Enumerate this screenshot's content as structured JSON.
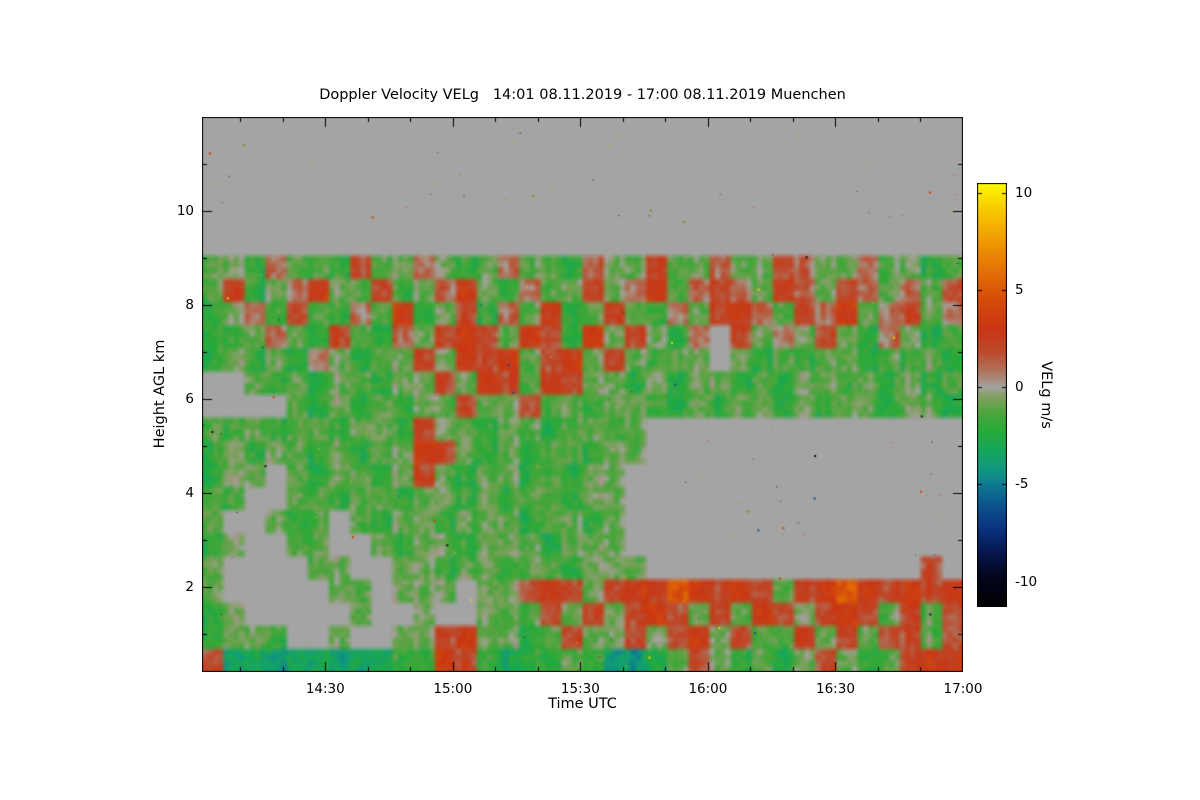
{
  "title": "Doppler Velocity VELg   14:01 08.11.2019 - 17:00 08.11.2019 Muenchen",
  "x_axis": {
    "label": "Time UTC",
    "ticks": [
      {
        "label": "14:30",
        "min": 870
      },
      {
        "label": "15:00",
        "min": 900
      },
      {
        "label": "15:30",
        "min": 930
      },
      {
        "label": "16:00",
        "min": 960
      },
      {
        "label": "16:30",
        "min": 990
      },
      {
        "label": "17:00",
        "min": 1020
      }
    ],
    "start_min": 841,
    "end_min": 1020,
    "minor_step_min": 10
  },
  "y_axis": {
    "label": "Height AGL km",
    "ticks": [
      2,
      4,
      6,
      8,
      10
    ],
    "minor_ticks": [
      1,
      3,
      5,
      7,
      9,
      11
    ],
    "min": 0.2,
    "max": 12.0
  },
  "colorbar": {
    "label": "VELg m/s",
    "ticks": [
      10,
      5,
      0,
      -5,
      -10
    ],
    "min": -11.3,
    "max": 10.5
  },
  "colors": {
    "background_gray": "#a4a4a4",
    "page_bg": "#ffffff",
    "axis": "#000000",
    "speckles": [
      "#101010",
      "#e8d400",
      "#cc4400",
      "#224488",
      "#888800"
    ]
  },
  "chart_data": {
    "type": "heatmap",
    "title": "Doppler Velocity VELg   14:01 08.11.2019 - 17:00 08.11.2019 Muenchen",
    "xlabel": "Time UTC",
    "ylabel": "Height AGL km",
    "value_label": "VELg m/s",
    "x_start": "14:01",
    "x_end": "17:00",
    "t_start_min": 841,
    "t_end_min": 1020,
    "y_top_km": 12.0,
    "y_bottom_km": 0.2,
    "value_range": [
      -11.3,
      10.5
    ],
    "background_value": 0,
    "n_cols": 36,
    "n_rows": 24,
    "colormap_stops": [
      [
        -11.3,
        "#000000"
      ],
      [
        -9.8,
        "#02051c"
      ],
      [
        -8.5,
        "#07174e"
      ],
      [
        -7.2,
        "#0b3380"
      ],
      [
        -6.0,
        "#0d568e"
      ],
      [
        -5.0,
        "#0e7b92"
      ],
      [
        -4.2,
        "#119a7e"
      ],
      [
        -3.2,
        "#16a75b"
      ],
      [
        -2.2,
        "#2aaa38"
      ],
      [
        -1.4,
        "#49a63a"
      ],
      [
        -0.7,
        "#74a155"
      ],
      [
        -0.2,
        "#95a07e"
      ],
      [
        0.0,
        "#a4a4a4"
      ],
      [
        0.3,
        "#a89284"
      ],
      [
        0.9,
        "#b0715a"
      ],
      [
        1.8,
        "#bd4a2c"
      ],
      [
        3.0,
        "#c93614"
      ],
      [
        4.5,
        "#d64b0a"
      ],
      [
        6.0,
        "#e47205"
      ],
      [
        7.5,
        "#ef9a02"
      ],
      [
        9.0,
        "#f7c601"
      ],
      [
        10.5,
        "#fdf802"
      ]
    ],
    "grid_rows_top_to_bottom": [
      [
        0,
        0,
        0,
        0,
        0,
        0,
        0,
        0,
        0,
        0,
        0,
        0,
        0,
        0,
        0,
        0,
        0,
        0,
        0,
        0,
        0,
        0,
        0,
        0,
        0,
        0,
        0,
        0,
        0,
        0,
        0,
        0,
        0,
        0,
        0,
        0
      ],
      [
        0,
        0,
        0,
        0,
        0,
        0,
        0,
        0,
        0,
        0,
        0,
        0,
        0,
        0,
        0,
        0,
        0,
        0,
        0,
        0,
        0,
        0,
        0,
        0,
        0,
        0,
        0,
        0,
        0,
        0,
        0,
        0,
        0,
        0,
        0,
        0
      ],
      [
        0,
        0,
        0,
        0,
        0,
        0,
        0,
        0,
        0,
        0,
        0,
        0,
        0,
        0,
        0,
        0,
        0,
        0,
        0,
        0,
        0,
        0,
        0,
        0,
        0,
        0,
        0,
        0,
        0,
        0,
        0,
        0,
        0,
        0,
        0,
        0
      ],
      [
        0,
        0,
        0,
        0,
        0,
        0,
        0,
        0,
        0,
        0,
        0,
        0,
        0,
        0,
        0,
        0,
        0,
        0,
        0,
        0,
        0,
        0,
        0,
        0,
        0,
        0,
        0,
        0,
        0,
        0,
        0,
        0,
        0,
        0,
        0,
        0
      ],
      [
        0,
        0,
        0,
        0,
        0,
        0,
        0,
        0,
        0,
        0,
        0,
        0,
        0,
        0,
        0,
        0,
        0,
        0,
        0,
        0,
        0,
        0,
        0,
        0,
        0,
        0,
        0,
        0,
        0,
        0,
        0,
        0,
        0,
        0,
        0,
        0
      ],
      [
        0,
        0,
        0,
        0,
        0,
        0,
        0,
        0,
        0,
        0,
        0,
        0,
        0,
        0,
        0,
        0,
        0,
        0,
        0,
        0,
        0,
        0,
        0,
        0,
        0,
        0,
        0,
        0,
        0,
        0,
        0,
        0,
        0,
        0,
        0,
        0
      ],
      [
        -1,
        -1,
        -2,
        1,
        -1,
        -1,
        -2,
        2,
        -1,
        -1,
        1,
        -1,
        -2,
        -1,
        1,
        -1,
        -1,
        -2,
        1,
        -1,
        -1,
        2,
        -1,
        -1,
        1,
        -1,
        -1,
        2,
        1,
        -1,
        -1,
        1,
        -1,
        -1,
        -2,
        -1
      ],
      [
        -1,
        2,
        -2,
        -1,
        1,
        3,
        -1,
        -1,
        2,
        -2,
        -1,
        1,
        3,
        -1,
        -2,
        1,
        -1,
        -1,
        2,
        -1,
        1,
        3,
        -1,
        1,
        2,
        1,
        -1,
        3,
        1,
        -1,
        2,
        1,
        -1,
        1,
        -1,
        2
      ],
      [
        -2,
        -1,
        1,
        -2,
        2,
        -1,
        -2,
        1,
        -1,
        3,
        -2,
        -1,
        2,
        -2,
        1,
        -1,
        3,
        -2,
        -1,
        2,
        -1,
        -2,
        1,
        -1,
        2,
        3,
        1,
        -1,
        2,
        1,
        3,
        -1,
        1,
        2,
        -1,
        1
      ],
      [
        -2,
        -2,
        -1,
        1,
        -1,
        -2,
        2,
        -1,
        -2,
        1,
        -1,
        2,
        3,
        2,
        -1,
        3,
        2,
        -2,
        3,
        -1,
        2,
        -1,
        -2,
        1,
        0,
        2,
        -1,
        1,
        -1,
        2,
        -1,
        -2,
        1,
        -1,
        -2,
        -1
      ],
      [
        -2,
        -1,
        -2,
        -1,
        -2,
        1,
        -1,
        -2,
        -1,
        -1,
        2,
        -1,
        3,
        2,
        3,
        -1,
        2,
        3,
        -1,
        2,
        -1,
        -2,
        -1,
        -1,
        0,
        -1,
        -2,
        -1,
        -2,
        -1,
        -1,
        -2,
        -1,
        -2,
        -1,
        -2
      ],
      [
        0,
        0,
        -1,
        -2,
        -1,
        -2,
        -1,
        -1,
        -2,
        -1,
        -1,
        2,
        -1,
        3,
        2,
        -1,
        3,
        2,
        -1,
        -1,
        -2,
        -1,
        -2,
        -1,
        -1,
        -2,
        -1,
        -2,
        -1,
        -1,
        -2,
        -1,
        -2,
        -1,
        -2,
        -1
      ],
      [
        0,
        0,
        0,
        0,
        -1,
        -2,
        -1,
        -2,
        -1,
        -2,
        -1,
        -1,
        2,
        -1,
        -1,
        2,
        -1,
        -1,
        -2,
        -1,
        -1,
        -2,
        -2,
        -1,
        -2,
        -1,
        -1,
        -2,
        -1,
        -2,
        -1,
        -1,
        -2,
        -1,
        -1,
        -2
      ],
      [
        -1,
        -2,
        -1,
        -2,
        -1,
        -1,
        -2,
        -1,
        -1,
        -2,
        2,
        -1,
        -1,
        -2,
        -1,
        -1,
        -2,
        -1,
        -1,
        -2,
        -1,
        0,
        0,
        0,
        0,
        0,
        0,
        0,
        0,
        0,
        0,
        0,
        0,
        0,
        0,
        0
      ],
      [
        -2,
        -1,
        -2,
        -1,
        -1,
        -2,
        -1,
        -2,
        -1,
        -1,
        3,
        2,
        -1,
        -2,
        -1,
        -2,
        -1,
        -1,
        -2,
        -1,
        -1,
        0,
        0,
        0,
        0,
        0,
        0,
        0,
        0,
        0,
        0,
        0,
        0,
        0,
        0,
        0
      ],
      [
        -2,
        -1,
        -1,
        0,
        -1,
        -2,
        -1,
        -1,
        -2,
        -1,
        2,
        -1,
        -2,
        -1,
        -1,
        -2,
        -1,
        -2,
        -1,
        -1,
        0,
        0,
        0,
        0,
        0,
        0,
        0,
        0,
        0,
        0,
        0,
        0,
        0,
        0,
        0,
        0
      ],
      [
        -1,
        -2,
        0,
        0,
        -1,
        -1,
        -2,
        -1,
        -1,
        -2,
        -1,
        -1,
        -2,
        -1,
        -2,
        -1,
        -1,
        -2,
        -1,
        -1,
        0,
        0,
        0,
        0,
        0,
        0,
        0,
        0,
        0,
        0,
        0,
        0,
        0,
        0,
        0,
        0
      ],
      [
        -1,
        0,
        0,
        -1,
        -2,
        -1,
        0,
        -1,
        -2,
        -1,
        -1,
        -2,
        -1,
        -1,
        -1,
        -2,
        -1,
        -1,
        -2,
        -1,
        0,
        0,
        0,
        0,
        0,
        0,
        0,
        0,
        0,
        0,
        0,
        0,
        0,
        0,
        0,
        0
      ],
      [
        -2,
        -1,
        0,
        0,
        -1,
        -1,
        0,
        0,
        -1,
        -2,
        -1,
        -1,
        -2,
        -1,
        -1,
        -1,
        -2,
        -1,
        -1,
        -1,
        0,
        0,
        0,
        0,
        0,
        0,
        0,
        0,
        0,
        0,
        0,
        0,
        0,
        0,
        0,
        0
      ],
      [
        -1,
        0,
        0,
        0,
        0,
        -1,
        -1,
        0,
        0,
        -1,
        -1,
        -2,
        -1,
        -1,
        -2,
        -1,
        -1,
        -2,
        -1,
        -1,
        -1,
        0,
        0,
        0,
        0,
        0,
        0,
        0,
        0,
        0,
        0,
        0,
        0,
        0,
        2,
        0
      ],
      [
        -1,
        0,
        0,
        0,
        0,
        0,
        -1,
        -1,
        0,
        -1,
        -1,
        -1,
        0,
        -1,
        -1,
        2,
        3,
        2,
        -1,
        2,
        3,
        2,
        5,
        3,
        2,
        3,
        2,
        -1,
        2,
        3,
        5,
        3,
        2,
        3,
        2,
        3
      ],
      [
        -2,
        -1,
        0,
        0,
        0,
        0,
        0,
        -1,
        0,
        0,
        -1,
        0,
        0,
        -1,
        -1,
        -1,
        2,
        -1,
        2,
        -1,
        2,
        3,
        2,
        -1,
        2,
        -1,
        3,
        2,
        -1,
        2,
        3,
        2,
        -1,
        2,
        -1,
        2
      ],
      [
        -2,
        -1,
        -1,
        -2,
        0,
        0,
        -1,
        0,
        0,
        -1,
        -1,
        2,
        3,
        -1,
        -1,
        -2,
        -1,
        2,
        -1,
        -1,
        2,
        -1,
        2,
        3,
        -1,
        2,
        -1,
        -1,
        2,
        -1,
        2,
        -1,
        2,
        2,
        -1,
        2
      ],
      [
        2,
        -4,
        -3,
        -4,
        -3,
        -3,
        -4,
        -3,
        -3,
        -2,
        -2,
        3,
        2,
        -2,
        -3,
        -2,
        -2,
        -1,
        -2,
        -4,
        -4,
        -3,
        -1,
        2,
        -1,
        -2,
        -1,
        -2,
        -1,
        2,
        -1,
        -2,
        -1,
        2,
        3,
        3
      ]
    ]
  }
}
